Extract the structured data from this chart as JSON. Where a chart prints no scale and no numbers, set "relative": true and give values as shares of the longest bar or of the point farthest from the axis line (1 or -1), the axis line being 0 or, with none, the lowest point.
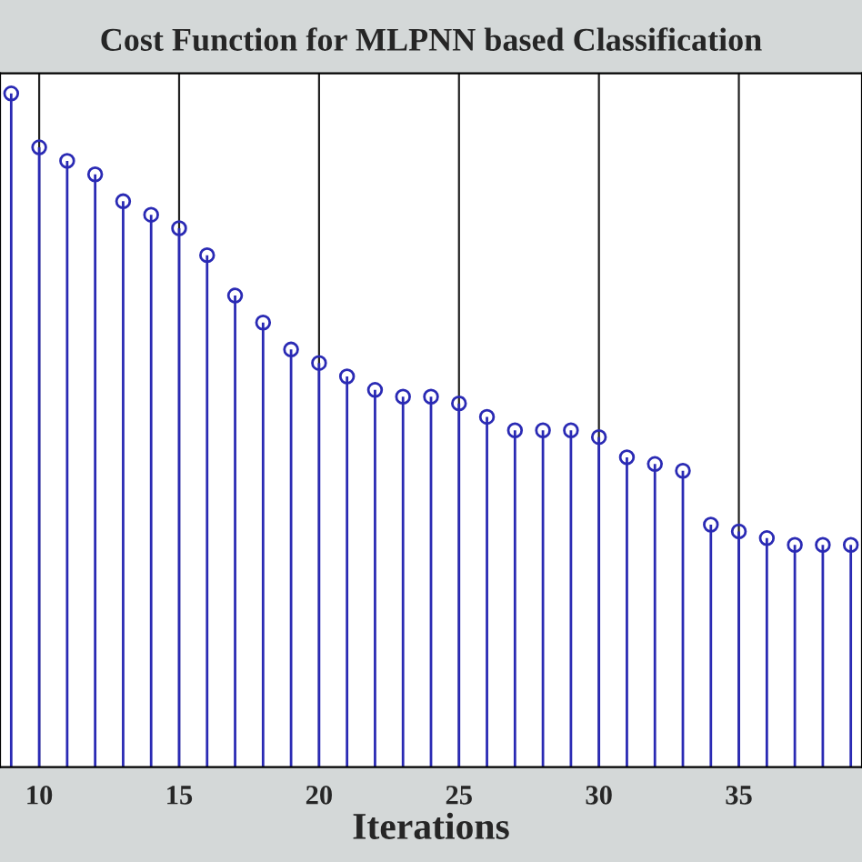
{
  "chart_data": {
    "type": "lollipop",
    "title": "Cost Function for MLPNN based Classification",
    "xlabel": "Iterations",
    "x": [
      9,
      10,
      11,
      12,
      13,
      14,
      15,
      16,
      17,
      18,
      19,
      20,
      21,
      22,
      23,
      24,
      25,
      26,
      27,
      28,
      29,
      30,
      31,
      32,
      33,
      34,
      35,
      36,
      37,
      38,
      39
    ],
    "series": [
      {
        "color": "#2a2ab4",
        "values": [
          1,
          0.92,
          0.9,
          0.88,
          0.84,
          0.82,
          0.8,
          0.76,
          0.7,
          0.66,
          0.62,
          0.6,
          0.58,
          0.56,
          0.55,
          0.55,
          0.54,
          0.52,
          0.5,
          0.5,
          0.5,
          0.49,
          0.46,
          0.45,
          0.44,
          0.36,
          0.35,
          0.34,
          0.33,
          0.33,
          0.33
        ]
      }
    ],
    "relative": true,
    "xlim": [
      8.6,
      39.4
    ],
    "xticks": [
      10,
      15,
      20,
      25,
      30,
      35
    ],
    "grid": "x",
    "tick_labels": "x",
    "marker": "circle"
  }
}
